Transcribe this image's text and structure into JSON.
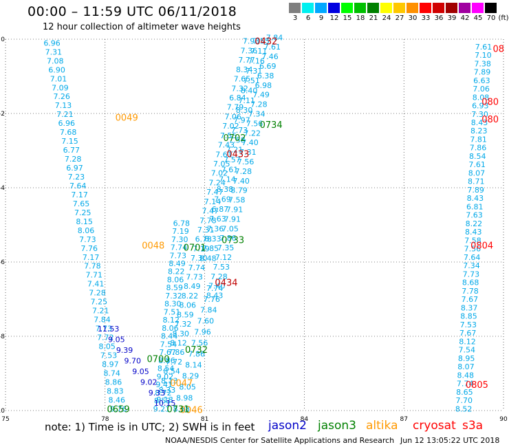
{
  "header": {
    "title": "00:00 – 11:59 UTC 06/11/2018",
    "subtitle": "12 hour collection of altimeter wave heights"
  },
  "scale": {
    "unit": "(ft)",
    "steps": [
      {
        "label": "3",
        "color": "#7f7f7f"
      },
      {
        "label": "6",
        "color": "#00f0f0"
      },
      {
        "label": "9",
        "color": "#00a8ff"
      },
      {
        "label": "12",
        "color": "#0000e0"
      },
      {
        "label": "15",
        "color": "#00ff00"
      },
      {
        "label": "18",
        "color": "#00c000"
      },
      {
        "label": "21",
        "color": "#008000"
      },
      {
        "label": "24",
        "color": "#ffff00"
      },
      {
        "label": "27",
        "color": "#ffc800"
      },
      {
        "label": "30",
        "color": "#ff9000"
      },
      {
        "label": "33",
        "color": "#ff0000"
      },
      {
        "label": "36",
        "color": "#d00000"
      },
      {
        "label": "39",
        "color": "#a00000"
      },
      {
        "label": "42",
        "color": "#a000a0"
      },
      {
        "label": "45",
        "color": "#ff00ff"
      },
      {
        "label": "70",
        "color": "#000000"
      }
    ]
  },
  "axes": {
    "x_ticks": [
      "75",
      "78",
      "81",
      "84",
      "87",
      "90"
    ],
    "y_ticks": [
      "0",
      "-2",
      "-4",
      "-6",
      "-8",
      "-10"
    ]
  },
  "colors": {
    "jason2": "#0000c8",
    "jason3": "#008000",
    "altika": "#ff9900",
    "cryosat": "#ff0000",
    "s3a": "#ff0000",
    "swh_light": "#00a8e8",
    "swh_dark": "#0000c8",
    "time_s3a": "#c00000",
    "time_altika": "#ff9900",
    "time_jason3": "#008000",
    "time_cryo": "#ff0000"
  },
  "legend": {
    "note": "note: 1) Time is in UTC; 2) SWH is in feet",
    "missions": [
      {
        "name": "jason2",
        "color": "#0000c8"
      },
      {
        "name": "jason3",
        "color": "#008000"
      },
      {
        "name": "altika",
        "color": "#ff9900"
      },
      {
        "name": "cryosat",
        "color": "#ff0000"
      },
      {
        "name": "s3a",
        "color": "#ff0000"
      }
    ]
  },
  "footer": {
    "center": "NOAA/NESDIS Center for Satellite Applications and Research",
    "date": "Jun 12 13:05:22 UTC 2018"
  },
  "map_data": {
    "lon_range": [
      75,
      90
    ],
    "lat_range": [
      -10,
      0
    ],
    "time_labels": [
      {
        "text": "0432",
        "lon": 82.85,
        "lat": -0.05,
        "kind": "time_s3a"
      },
      {
        "text": "0433",
        "lon": 82.0,
        "lat": -3.08,
        "kind": "time_s3a"
      },
      {
        "text": "0434",
        "lon": 81.65,
        "lat": -6.55,
        "kind": "time_s3a"
      },
      {
        "text": "0734",
        "lon": 83.0,
        "lat": -2.3,
        "kind": "time_jason3"
      },
      {
        "text": "0733",
        "lon": 81.85,
        "lat": -5.4,
        "kind": "time_jason3"
      },
      {
        "text": "0732",
        "lon": 80.75,
        "lat": -8.35,
        "kind": "time_jason3"
      },
      {
        "text": "0702",
        "lon": 81.9,
        "lat": -2.65,
        "kind": "time_jason3"
      },
      {
        "text": "0701",
        "lon": 80.7,
        "lat": -5.6,
        "kind": "time_jason3"
      },
      {
        "text": "0700",
        "lon": 79.6,
        "lat": -8.6,
        "kind": "time_jason3"
      },
      {
        "text": "0659",
        "lon": 78.4,
        "lat": -9.95,
        "kind": "time_jason3"
      },
      {
        "text": "0049",
        "lon": 78.65,
        "lat": -2.1,
        "kind": "time_altika"
      },
      {
        "text": "0048",
        "lon": 79.45,
        "lat": -5.55,
        "kind": "time_altika"
      },
      {
        "text": "0047",
        "lon": 80.3,
        "lat": -9.25,
        "kind": "time_altika"
      },
      {
        "text": "0046",
        "lon": 80.6,
        "lat": -9.97,
        "kind": "time_altika"
      },
      {
        "text": "0804",
        "lon": 89.35,
        "lat": -5.55,
        "kind": "time_cryo"
      },
      {
        "text": "0805",
        "lon": 89.2,
        "lat": -9.3,
        "kind": "time_cryo"
      },
      {
        "text": "08",
        "lon": 89.85,
        "lat": -0.25,
        "kind": "time_cryo"
      },
      {
        "text": "080",
        "lon": 89.6,
        "lat": -1.68,
        "kind": "time_cryo"
      },
      {
        "text": "080",
        "lon": 89.6,
        "lat": -2.15,
        "kind": "time_cryo"
      },
      {
        "text": "0731",
        "lon": 80.2,
        "lat": -9.95,
        "kind": "time_jason3"
      }
    ],
    "swh_tracks": [
      {
        "name": "track-west",
        "kind": "swh_light",
        "start": [
          76.4,
          -0.1
        ],
        "end": [
          78.4,
          -9.95
        ],
        "values": [
          "6.96",
          "7.31",
          "7.08",
          "6.90",
          "7.01",
          "7.09",
          "7.26",
          "7.13",
          "7.21",
          "6.96",
          "7.68",
          "7.15",
          "6.77",
          "7.28",
          "6.97",
          "7.23",
          "7.64",
          "7.17",
          "7.65",
          "7.25",
          "8.15",
          "8.06",
          "7.73",
          "7.76",
          "7.17",
          "7.78",
          "7.71",
          "7.41",
          "7.28",
          "7.25",
          "7.21",
          "7.84",
          "7.73",
          "7.72",
          "8.05",
          "7.53",
          "8.97",
          "8.74",
          "8.86",
          "8.83",
          "8.46",
          "9.76"
        ]
      },
      {
        "name": "track-altika-mid",
        "kind": "swh_light",
        "start": [
          80.3,
          -4.95
        ],
        "end": [
          79.7,
          -9.95
        ],
        "values": [
          "6.78",
          "7.19",
          "7.30",
          "7.74",
          "7.73",
          "8.49",
          "8.22",
          "8.06",
          "8.59",
          "7.32",
          "8.30",
          "7.51",
          "8.12",
          "8.06",
          "8.44",
          "7.54",
          "7.67",
          "8.86",
          "8.54",
          "9.02",
          "9.41",
          "8.72",
          "8.53",
          "9.21"
        ]
      },
      {
        "name": "track-jason-a",
        "kind": "swh_light",
        "start": [
          82.4,
          -0.05
        ],
        "end": [
          79.8,
          -9.7
        ],
        "values": [
          "7.93",
          "7.36",
          "7.77",
          "8.34",
          "7.65",
          "7.32",
          "6.84",
          "7.79",
          "7.06",
          "7.02",
          "7.55",
          "7.43",
          "7.61",
          "7.05",
          "7.02",
          "7.24",
          "7.47",
          "7.14",
          "7.47",
          "7.78",
          "7.31",
          "6.78",
          "7.19",
          "7.30",
          "7.74",
          "7.73",
          "8.49",
          "8.22",
          "8.06",
          "8.59",
          "7.32",
          "8.30",
          "8.12",
          "7.86",
          "7.72",
          "8.54",
          "8.13",
          "8.33",
          "9.13"
        ]
      },
      {
        "name": "track-jason-b",
        "kind": "swh_light",
        "start": [
          82.7,
          -0.05
        ],
        "end": [
          81.1,
          -5.9
        ],
        "values": [
          "7.55",
          "7.11",
          "7.16",
          "7.31",
          "7.51",
          "8.40",
          "7.11",
          "8.30",
          "7.97",
          "7.73",
          "7.58",
          "7.21",
          "7.57",
          "7.61",
          "7.14",
          "8.38",
          "7.69",
          "6.87",
          "7.63",
          "7.36",
          "8.33",
          "7.85",
          "8.48"
        ]
      },
      {
        "name": "track-jason-c",
        "kind": "swh_light",
        "start": [
          83.1,
          0.05
        ],
        "end": [
          81.3,
          -6.9
        ],
        "values": [
          "7.84",
          "7.61",
          "7.46",
          "6.69",
          "6.38",
          "6.98",
          "7.49",
          "7.28",
          "7.34",
          "7.56",
          "7.22",
          "7.40",
          "7.31",
          "7.56",
          "7.28",
          "7.40",
          "8.79",
          "7.58",
          "7.91",
          "7.91",
          "7.05",
          "7.86",
          "7.35",
          "7.12",
          "7.53",
          "7.28",
          "7.40",
          "8.43"
        ]
      },
      {
        "name": "track-low-mix",
        "kind": "swh_light",
        "start": [
          81.3,
          -6.7
        ],
        "end": [
          80.3,
          -9.95
        ],
        "values": [
          "7.74",
          "7.76",
          "7.84",
          "7.60",
          "7.96",
          "7.56",
          "7.86",
          "8.14",
          "8.29",
          "8.05",
          "8.98",
          "8.88"
        ]
      },
      {
        "name": "track-blue",
        "kind": "swh_dark",
        "start": [
          78.1,
          -7.8
        ],
        "end": [
          79.8,
          -9.8
        ],
        "values": [
          "11.53",
          "9.05",
          "9.39",
          "9.70",
          "9.05",
          "9.02",
          "9.33",
          "10.15"
        ]
      },
      {
        "name": "track-cryosat",
        "kind": "swh_light",
        "start": [
          89.4,
          -0.2
        ],
        "end": [
          88.8,
          -9.95
        ],
        "values": [
          "7.61",
          "7.10",
          "7.38",
          "7.89",
          "6.63",
          "7.06",
          "8.08",
          "6.93",
          "7.30",
          "8.43",
          "8.23",
          "7.81",
          "7.86",
          "8.54",
          "7.61",
          "8.07",
          "8.71",
          "7.89",
          "8.43",
          "6.81",
          "7.63",
          "8.22",
          "8.43",
          "7.58",
          "7.56",
          "7.64",
          "7.34",
          "7.73",
          "8.68",
          "7.78",
          "7.67",
          "8.37",
          "8.85",
          "7.53",
          "7.67",
          "8.12",
          "7.54",
          "8.95",
          "8.07",
          "8.48",
          "7.74",
          "8.65",
          "7.70",
          "8.52"
        ]
      }
    ]
  }
}
